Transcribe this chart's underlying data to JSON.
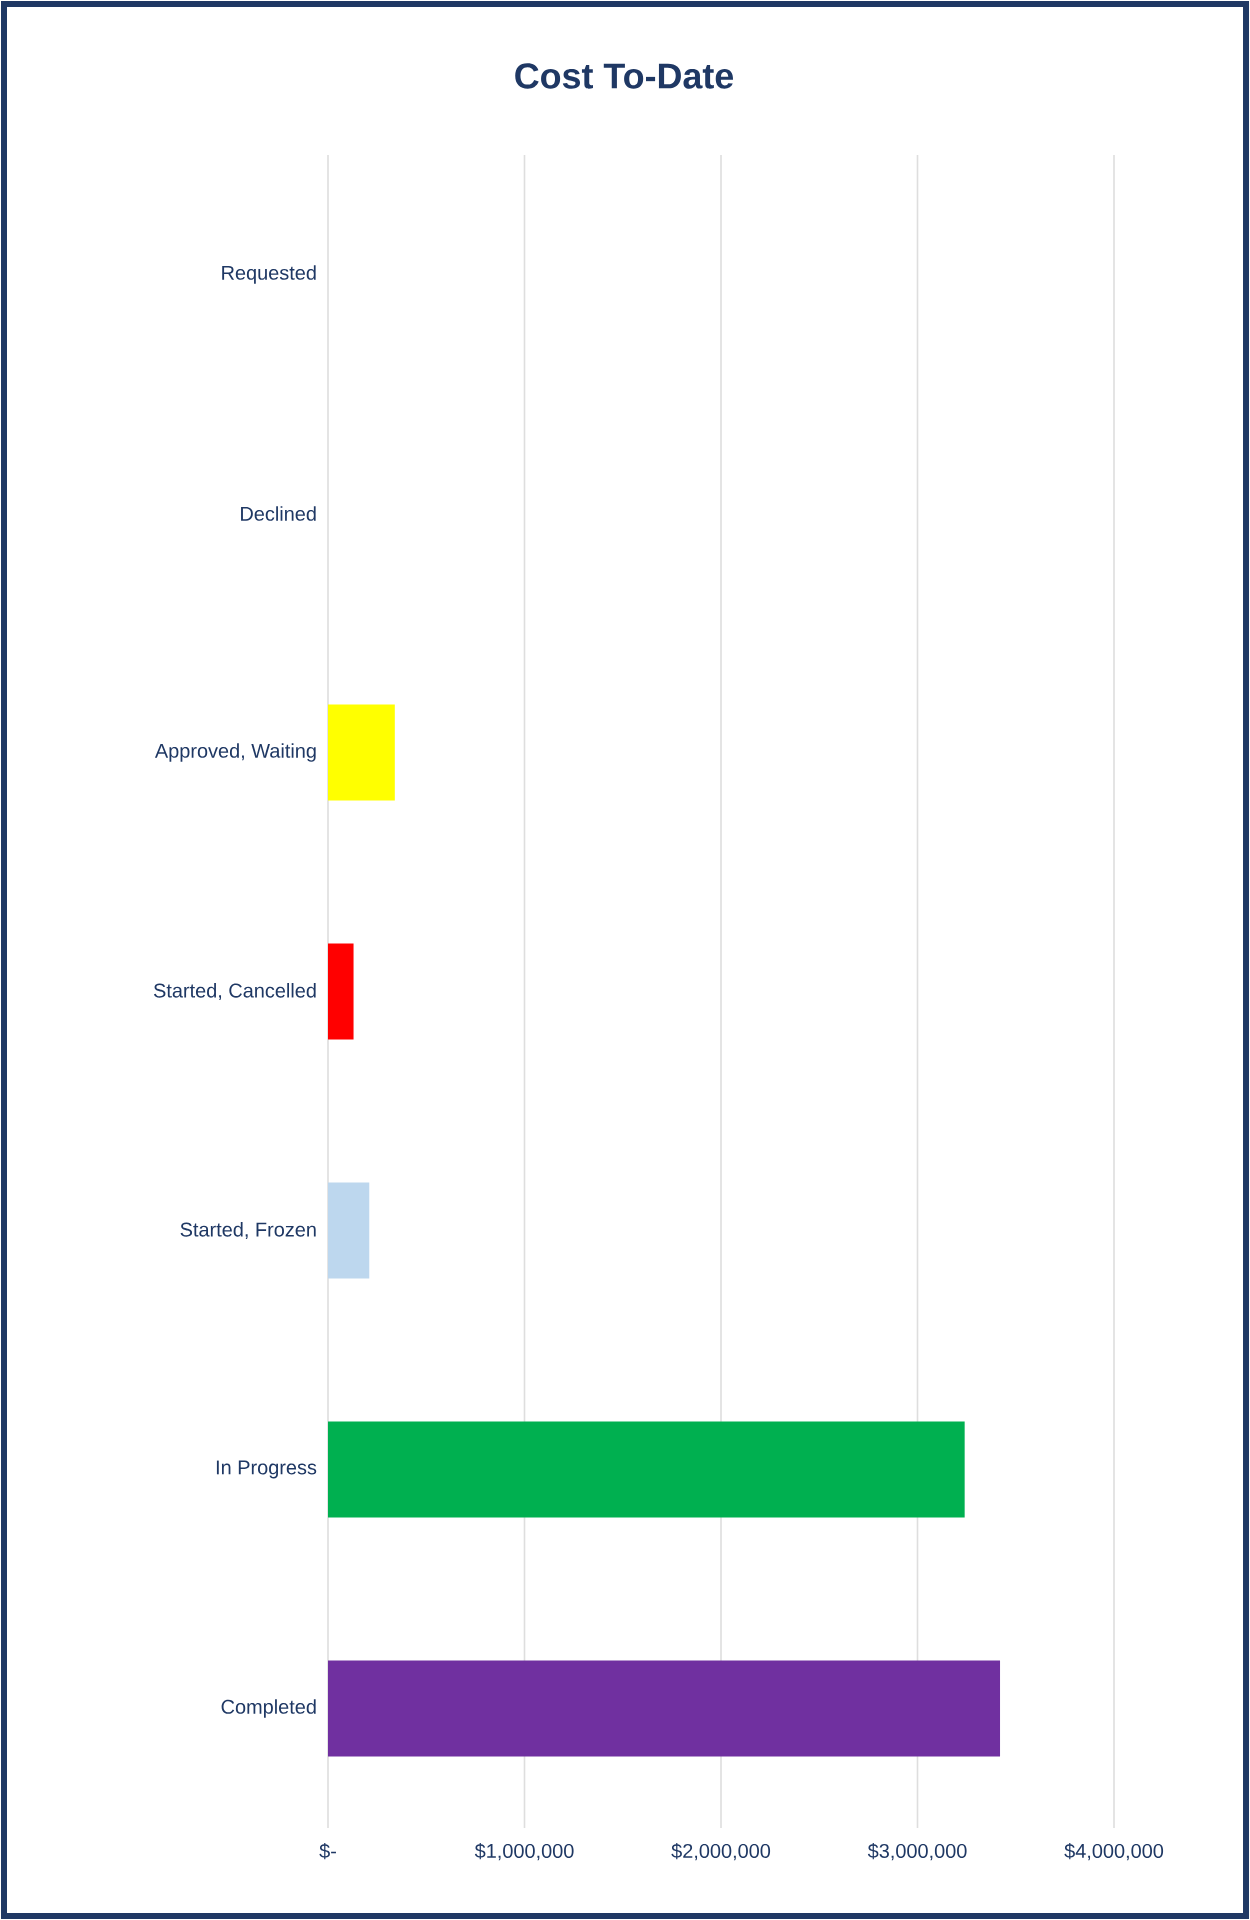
{
  "chart_data": {
    "type": "bar",
    "orientation": "horizontal",
    "title": "Cost To-Date",
    "categories": [
      "Requested",
      "Declined",
      "Approved, Waiting",
      "Started, Cancelled",
      "Started, Frozen",
      "In Progress",
      "Completed"
    ],
    "values": [
      0,
      0,
      340000,
      130000,
      210000,
      3240000,
      3420000
    ],
    "colors": [
      null,
      null,
      "#ffff00",
      "#ff0000",
      "#bdd7ee",
      "#00b050",
      "#7030a0"
    ],
    "xlim": [
      0,
      4000000
    ],
    "xticks": [
      {
        "value": 0,
        "label": "$-"
      },
      {
        "value": 1000000,
        "label": "$1,000,000"
      },
      {
        "value": 2000000,
        "label": "$2,000,000"
      },
      {
        "value": 3000000,
        "label": "$3,000,000"
      },
      {
        "value": 4000000,
        "label": "$4,000,000"
      }
    ],
    "grid": "x"
  }
}
